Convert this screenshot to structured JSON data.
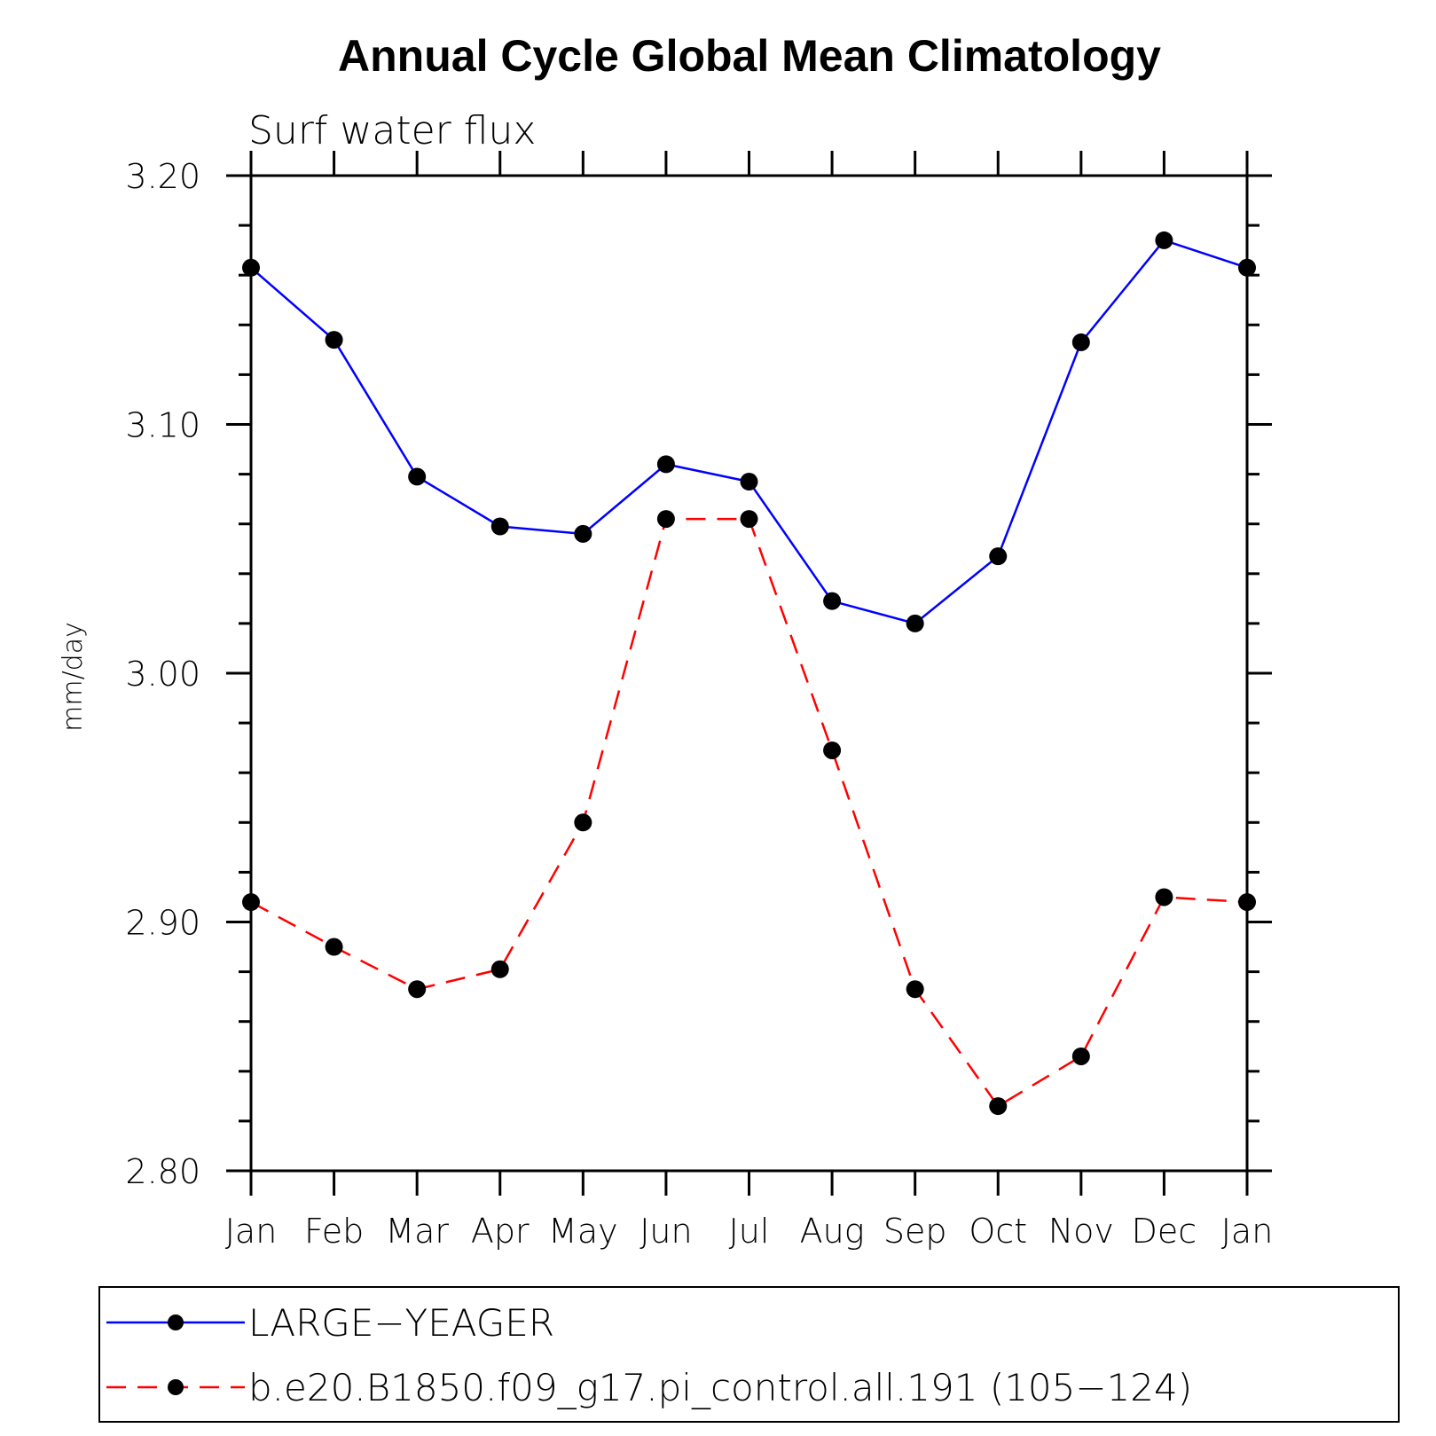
{
  "chart_data": {
    "type": "line",
    "title": "Annual Cycle Global Mean Climatology",
    "subtitle": "Surf water flux",
    "ylabel": "mm/day",
    "xlabel": "",
    "categories": [
      "Jan",
      "Feb",
      "Mar",
      "Apr",
      "May",
      "Jun",
      "Jul",
      "Aug",
      "Sep",
      "Oct",
      "Nov",
      "Dec",
      "Jan"
    ],
    "ylim": [
      2.8,
      3.2
    ],
    "yticks": [
      "2.80",
      "2.90",
      "3.00",
      "3.10",
      "3.20"
    ],
    "grid": false,
    "legend_position": "bottom",
    "series": [
      {
        "name": "LARGE−YEAGER",
        "color": "#0000ff",
        "style": "solid",
        "marker": "filled-circle",
        "values": [
          3.163,
          3.134,
          3.079,
          3.059,
          3.056,
          3.084,
          3.077,
          3.029,
          3.02,
          3.047,
          3.133,
          3.174,
          3.163
        ]
      },
      {
        "name": "b.e20.B1850.f09_g17.pi_control.all.191 (105−124)",
        "color": "#ff0000",
        "style": "dashed",
        "marker": "filled-circle",
        "values": [
          2.908,
          2.89,
          2.873,
          2.881,
          2.94,
          3.062,
          3.062,
          2.969,
          2.873,
          2.826,
          2.846,
          2.91,
          2.908
        ]
      }
    ]
  }
}
